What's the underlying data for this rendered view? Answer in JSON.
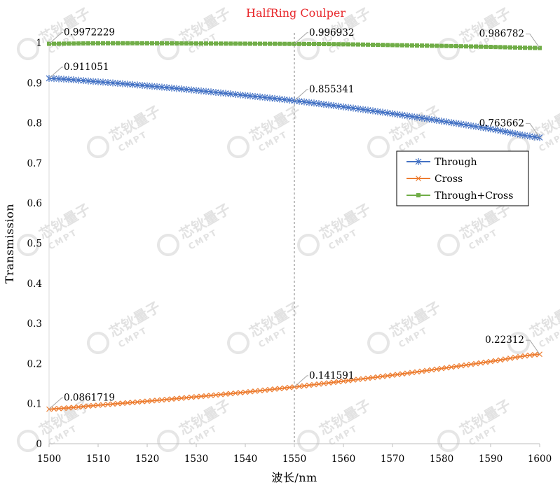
{
  "chart_data": {
    "type": "line",
    "title": "HalfRing Coulper",
    "xlabel": "波长/nm",
    "ylabel": "Transmission",
    "xlim": [
      1500,
      1600
    ],
    "ylim": [
      0,
      1
    ],
    "xticks": [
      1500,
      1510,
      1520,
      1530,
      1540,
      1550,
      1560,
      1570,
      1580,
      1590,
      1600
    ],
    "yticks": [
      0,
      0.1,
      0.2,
      0.3,
      0.4,
      0.5,
      0.6,
      0.7,
      0.8,
      0.9,
      1
    ],
    "grid": false,
    "legend_position": "center-right",
    "reference_line_x": 1550,
    "series": [
      {
        "name": "Through",
        "color": "#4472c4",
        "marker": "asterisk",
        "x": [
          1500,
          1510,
          1520,
          1530,
          1540,
          1550,
          1560,
          1570,
          1580,
          1590,
          1600
        ],
        "y": [
          0.911051,
          0.9025,
          0.8925,
          0.881,
          0.8685,
          0.855341,
          0.84,
          0.823,
          0.8045,
          0.785,
          0.763662
        ]
      },
      {
        "name": "Cross",
        "color": "#ed7d31",
        "marker": "x",
        "x": [
          1500,
          1510,
          1520,
          1530,
          1540,
          1550,
          1560,
          1570,
          1580,
          1590,
          1600
        ],
        "y": [
          0.0861719,
          0.096,
          0.106,
          0.117,
          0.1285,
          0.141591,
          0.156,
          0.171,
          0.1875,
          0.205,
          0.22312
        ]
      },
      {
        "name": "Through+Cross",
        "color": "#70ad47",
        "marker": "square",
        "x": [
          1500,
          1510,
          1520,
          1530,
          1540,
          1550,
          1560,
          1570,
          1580,
          1590,
          1600
        ],
        "y": [
          0.9972229,
          0.9985,
          0.9985,
          0.998,
          0.9975,
          0.996932,
          0.996,
          0.994,
          0.992,
          0.9895,
          0.986782
        ]
      }
    ],
    "annotations": [
      {
        "series": 2,
        "x": 1500,
        "y": 0.9972229,
        "text": "0.9972229",
        "side": "right"
      },
      {
        "series": 2,
        "x": 1550,
        "y": 0.996932,
        "text": "0.996932",
        "side": "right"
      },
      {
        "series": 2,
        "x": 1600,
        "y": 0.986782,
        "text": "0.986782",
        "side": "left"
      },
      {
        "series": 0,
        "x": 1500,
        "y": 0.911051,
        "text": "0.911051",
        "side": "right"
      },
      {
        "series": 0,
        "x": 1550,
        "y": 0.855341,
        "text": "0.855341",
        "side": "right"
      },
      {
        "series": 0,
        "x": 1600,
        "y": 0.763662,
        "text": "0.763662",
        "side": "left"
      },
      {
        "series": 1,
        "x": 1500,
        "y": 0.0861719,
        "text": "0.0861719",
        "side": "right"
      },
      {
        "series": 1,
        "x": 1550,
        "y": 0.141591,
        "text": "0.141591",
        "side": "right"
      },
      {
        "series": 1,
        "x": 1600,
        "y": 0.22312,
        "text": "0.22312",
        "side": "left"
      }
    ]
  },
  "watermark": {
    "brand": "芯钬量子",
    "sub": "CMPT"
  }
}
